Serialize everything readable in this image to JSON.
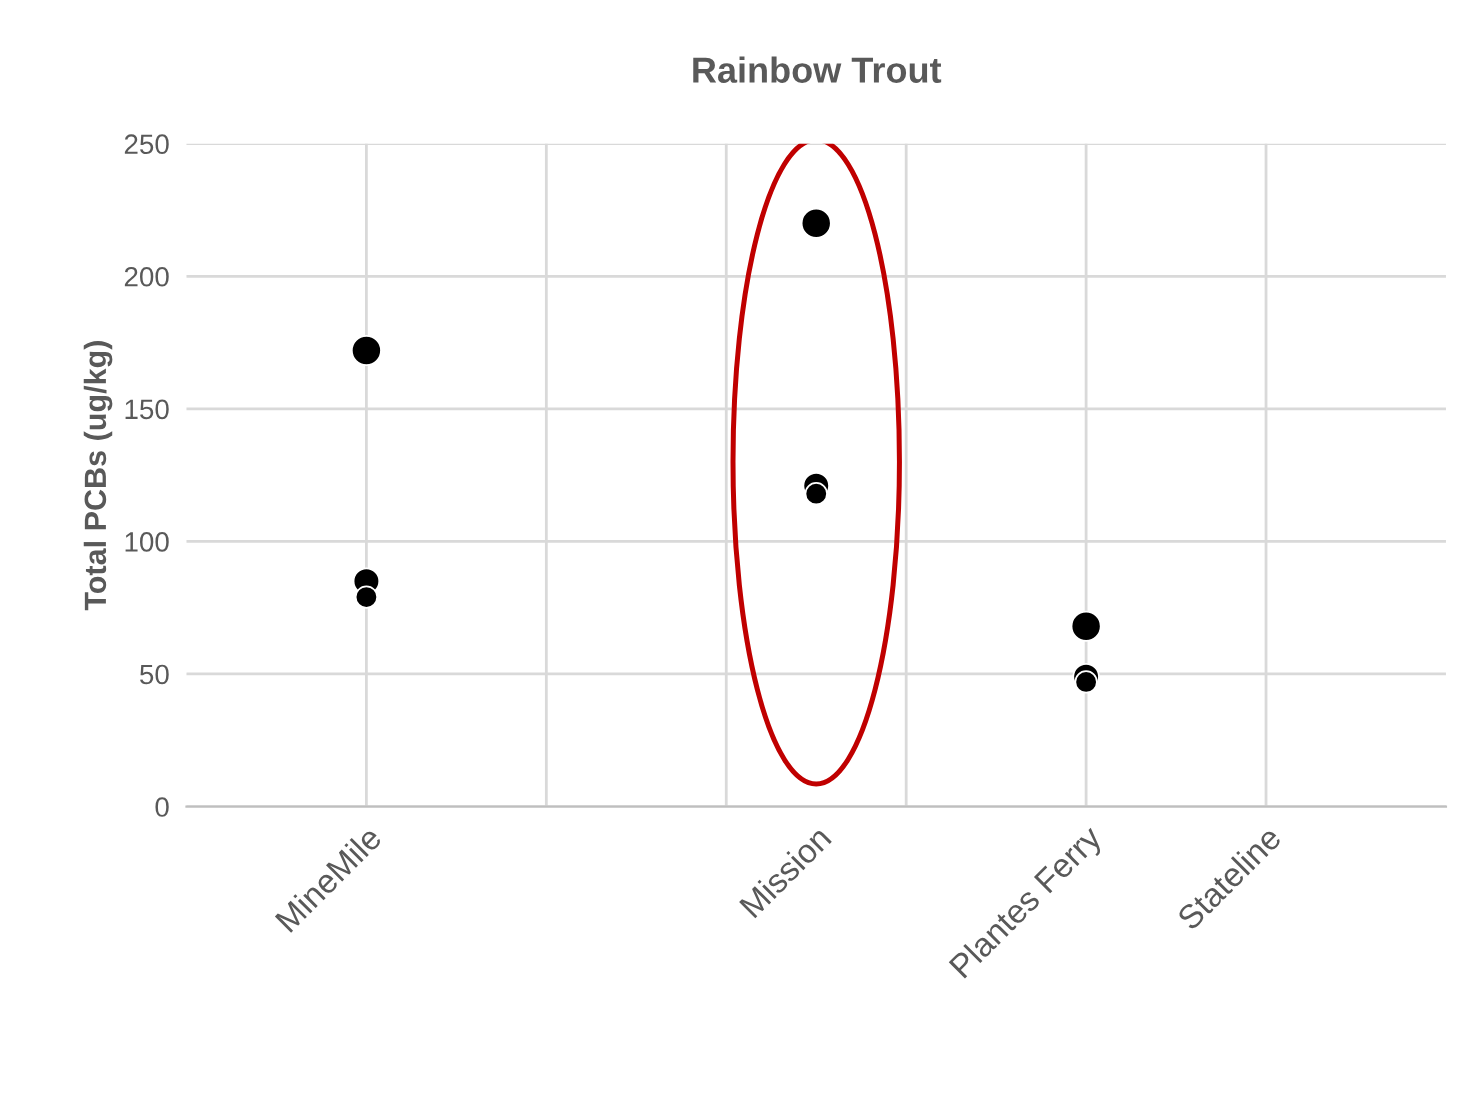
{
  "chart_data": {
    "type": "scatter",
    "title": "Rainbow Trout",
    "ylabel": "Total PCBs (ug/kg)",
    "categories": [
      null,
      "MineMile",
      null,
      null,
      null,
      null,
      "Mission",
      null,
      null,
      "Plantes Ferry",
      null,
      "Stateline",
      null
    ],
    "series": [
      {
        "color": "#000000",
        "values": [
          null,
          172,
          null,
          null,
          null,
          null,
          220,
          null,
          null,
          68,
          null,
          null,
          null
        ]
      },
      {
        "color": "#000000",
        "values": [
          null,
          85,
          null,
          null,
          null,
          null,
          121,
          null,
          null,
          49,
          null,
          null,
          null
        ]
      },
      {
        "color": "#000000",
        "values": [
          null,
          79,
          null,
          null,
          null,
          null,
          118,
          null,
          null,
          47,
          null,
          null,
          null
        ]
      }
    ],
    "ylim": [
      0,
      250
    ],
    "yticks": [
      0,
      50,
      100,
      150,
      200,
      250
    ],
    "grid": true,
    "marker": "circle",
    "legend": false
  }
}
